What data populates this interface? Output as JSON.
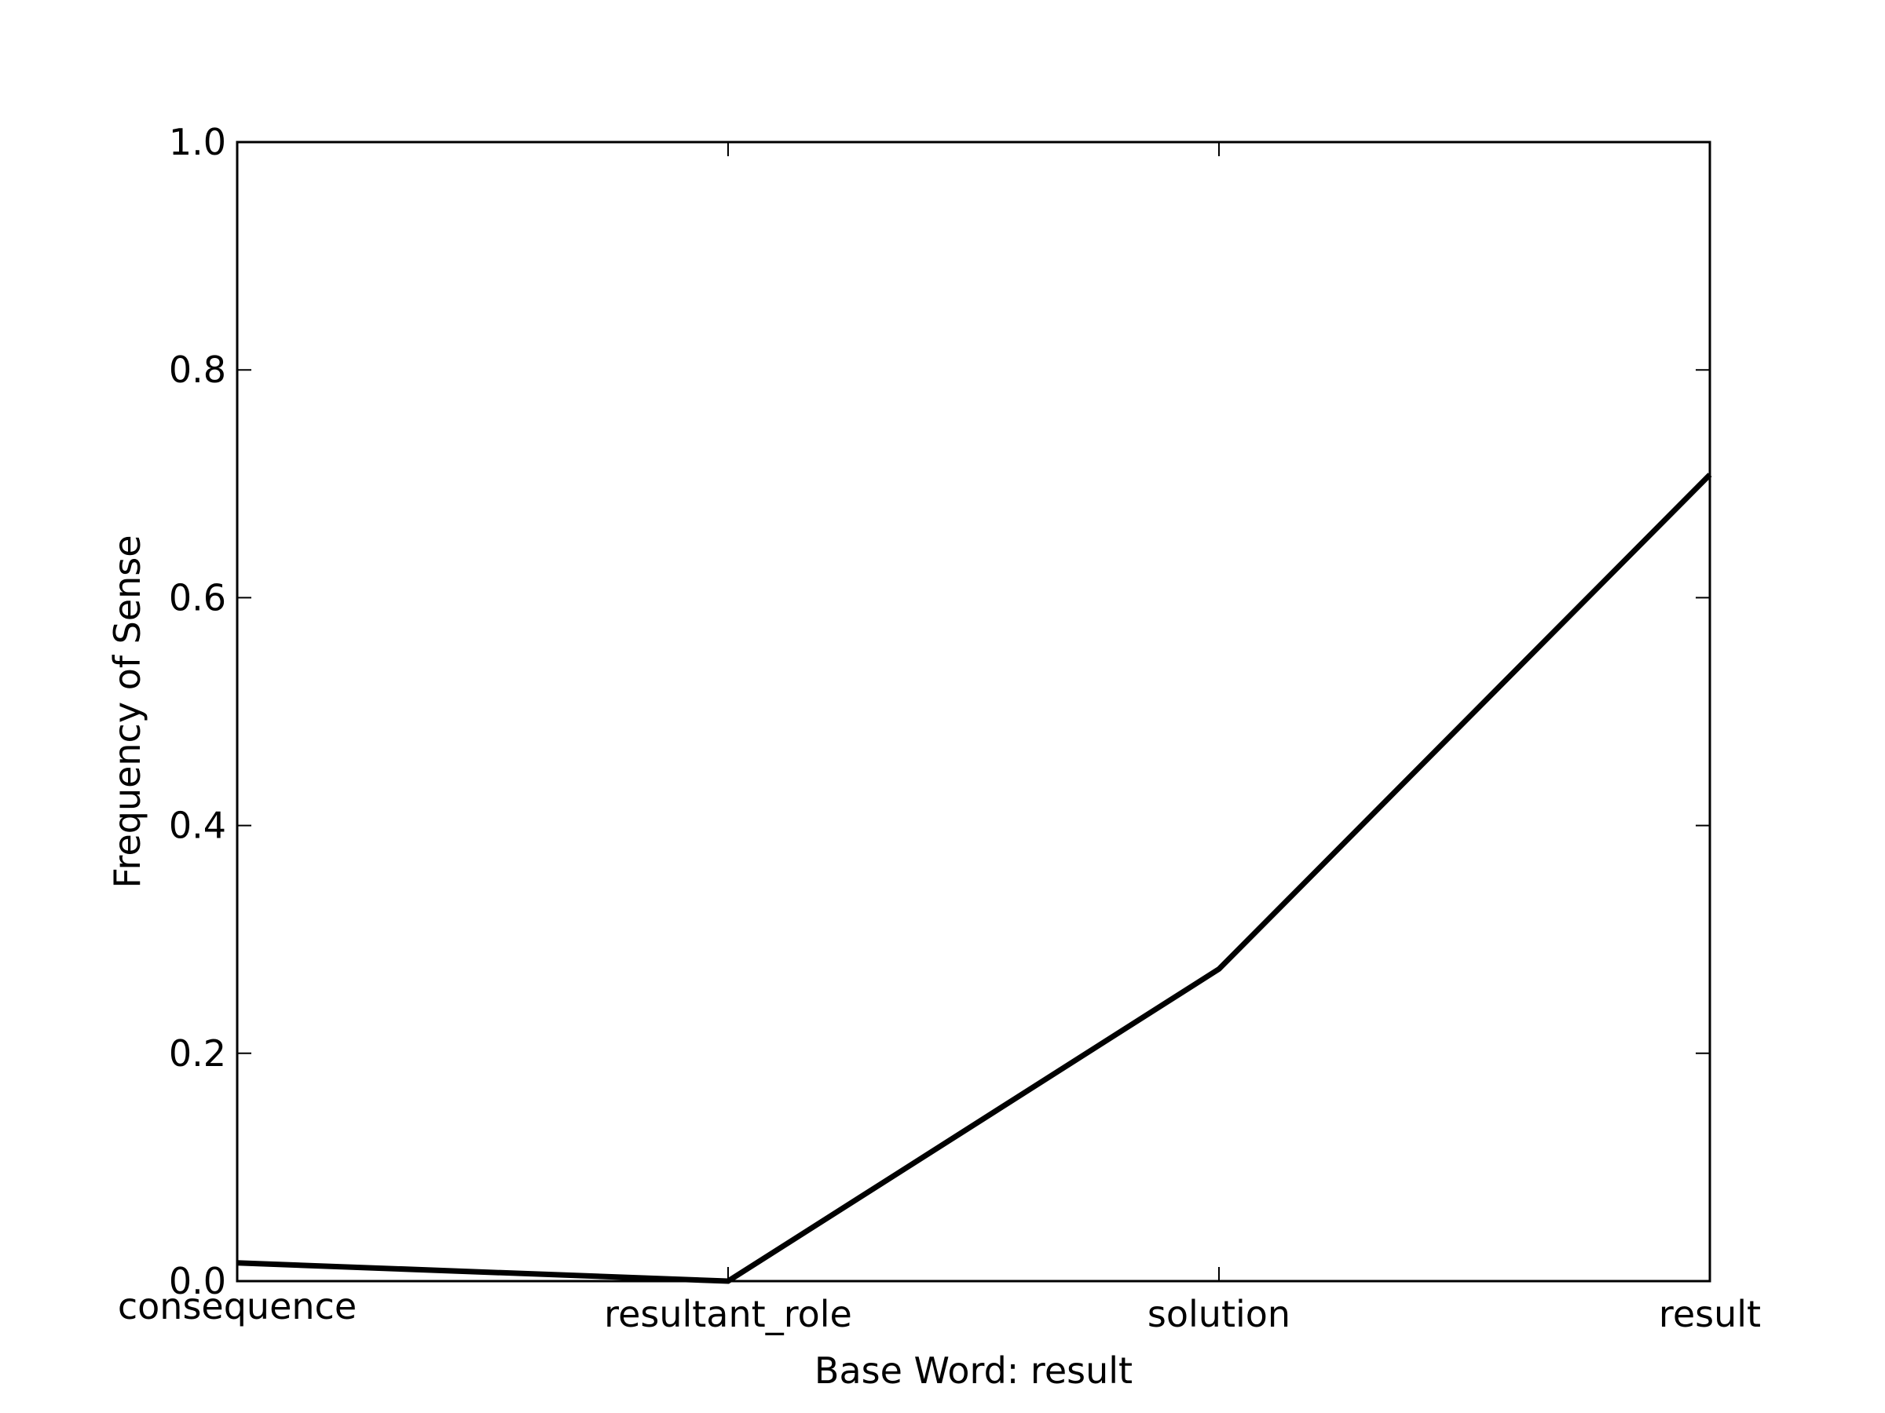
{
  "chart_data": {
    "type": "line",
    "title": "",
    "xlabel": "Base Word: result",
    "ylabel": "Frequency of Sense",
    "categories": [
      "consequence",
      "resultant_role",
      "solution",
      "result"
    ],
    "series": [
      {
        "values": [
          0.016,
          0.0,
          0.274,
          0.708
        ]
      }
    ],
    "ylim": [
      0.0,
      1.0
    ],
    "yticks": [
      0.0,
      0.2,
      0.4,
      0.6,
      0.8,
      1.0
    ],
    "ytick_labels": [
      "0.0",
      "0.2",
      "0.4",
      "0.6",
      "0.8",
      "1.0"
    ],
    "grid": false,
    "legend": "none",
    "line_color": "#000000"
  }
}
